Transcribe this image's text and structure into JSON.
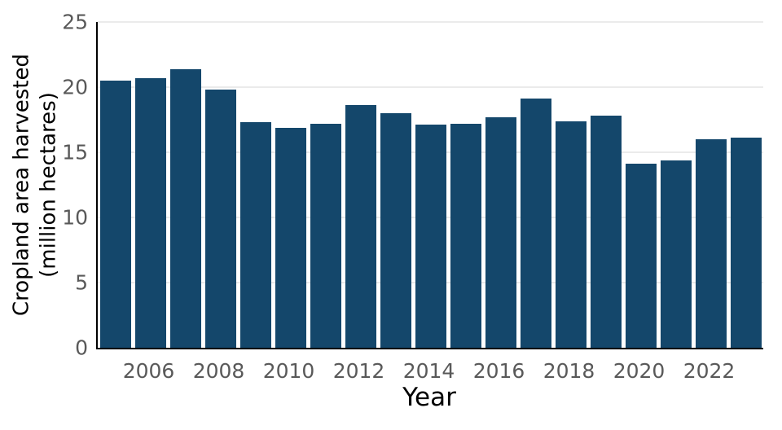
{
  "chart_data": {
    "type": "bar",
    "title": "",
    "xlabel": "Year",
    "ylabel": "Cropland area harvested (million hectares)",
    "ylabel_lines": [
      "Cropland area harvested",
      "(million hectares)"
    ],
    "categories": [
      2005,
      2006,
      2007,
      2008,
      2009,
      2010,
      2011,
      2012,
      2013,
      2014,
      2015,
      2016,
      2017,
      2018,
      2019,
      2020,
      2021,
      2022,
      2023
    ],
    "values": [
      20.5,
      20.7,
      21.4,
      19.8,
      17.3,
      16.9,
      17.2,
      18.6,
      18.0,
      17.1,
      17.2,
      17.7,
      19.1,
      17.4,
      17.8,
      14.1,
      14.4,
      16.0,
      16.1
    ],
    "ylim": [
      0,
      25
    ],
    "yticks": [
      0,
      5,
      10,
      15,
      20,
      25
    ],
    "xticks_shown": [
      2006,
      2008,
      2010,
      2012,
      2014,
      2016,
      2018,
      2020,
      2022
    ],
    "legend": "none",
    "grid": "horizontal",
    "colors": {
      "bar": "#14476b",
      "gridline": "#ebebeb",
      "tick_label": "#595959",
      "axis_label": "#000000",
      "spine": "#000000",
      "background": "#ffffff"
    }
  }
}
